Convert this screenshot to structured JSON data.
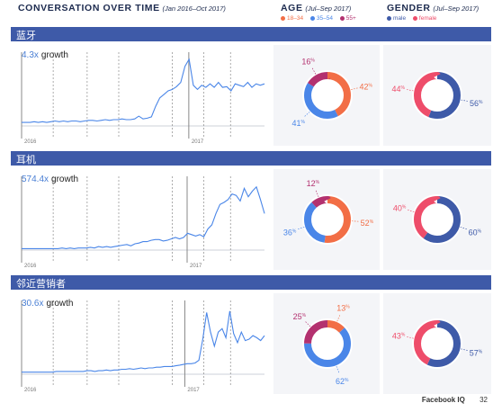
{
  "header": {
    "conversation_title": "CONVERSATION OVER TIME",
    "conversation_sub": "(Jan 2016–Oct 2017)",
    "age_title": "AGE",
    "age_sub": "(Jul–Sep 2017)",
    "gender_title": "GENDER",
    "gender_sub": "(Jul–Sep 2017)"
  },
  "legend": {
    "age": [
      {
        "label": "18–34",
        "color": "#f26e46"
      },
      {
        "label": "35–54",
        "color": "#4a86e8"
      },
      {
        "label": "55+",
        "color": "#b3316f"
      }
    ],
    "gender": [
      {
        "label": "male",
        "color": "#3e5aa8"
      },
      {
        "label": "female",
        "color": "#ee4d6a"
      }
    ]
  },
  "colors": {
    "band": "#3e5aa8",
    "line": "#4a86e8"
  },
  "footer": {
    "brand": "Facebook IQ",
    "page": "32"
  },
  "chart_data": [
    {
      "type": "line",
      "title": "蓝牙",
      "growth_value": "4.3x",
      "growth_word": "growth",
      "year_labels": [
        "2016",
        "2017"
      ],
      "ylim": [
        0,
        100
      ],
      "values": [
        5,
        5,
        5,
        6,
        5,
        6,
        5,
        6,
        7,
        6,
        7,
        6,
        7,
        7,
        6,
        7,
        8,
        8,
        7,
        8,
        9,
        8,
        9,
        9,
        10,
        9,
        9,
        10,
        14,
        10,
        11,
        13,
        28,
        40,
        45,
        50,
        52,
        56,
        62,
        85,
        95,
        58,
        52,
        58,
        55,
        60,
        55,
        62,
        55,
        56,
        50,
        60,
        58,
        56,
        62,
        55,
        60,
        58,
        60
      ],
      "donuts": [
        {
          "kind": "age",
          "values": [
            42,
            41,
            16
          ],
          "labels": [
            "42",
            "41",
            "16"
          ],
          "pct": "%"
        },
        {
          "kind": "gender",
          "values": [
            56,
            44
          ],
          "labels": [
            "56",
            "44"
          ],
          "pct": "%"
        }
      ]
    },
    {
      "type": "line",
      "title": "耳机",
      "growth_value": "574.4x",
      "growth_word": "growth",
      "year_labels": [
        "2016",
        "2017"
      ],
      "ylim": [
        0,
        100
      ],
      "values": [
        2,
        2,
        2,
        2,
        2,
        2,
        2,
        2,
        2,
        2,
        3,
        2,
        3,
        2,
        3,
        3,
        3,
        4,
        3,
        5,
        4,
        5,
        4,
        5,
        6,
        7,
        8,
        6,
        9,
        10,
        12,
        12,
        14,
        15,
        15,
        13,
        14,
        16,
        18,
        16,
        18,
        24,
        22,
        20,
        22,
        19,
        30,
        36,
        52,
        65,
        68,
        72,
        80,
        78,
        70,
        88,
        76,
        84,
        90,
        72,
        52
      ],
      "donuts": [
        {
          "kind": "age",
          "values": [
            52,
            36,
            12
          ],
          "labels": [
            "52",
            "36",
            "12"
          ],
          "pct": "%"
        },
        {
          "kind": "gender",
          "values": [
            60,
            40
          ],
          "labels": [
            "60",
            "40"
          ],
          "pct": "%"
        }
      ]
    },
    {
      "type": "line",
      "title": "邻近营销者",
      "growth_value": "30.6x",
      "growth_word": "growth",
      "year_labels": [
        "2016",
        "2017"
      ],
      "ylim": [
        0,
        100
      ],
      "values": [
        3,
        3,
        3,
        3,
        3,
        3,
        3,
        3,
        3,
        4,
        4,
        4,
        4,
        4,
        4,
        4,
        4,
        5,
        5,
        4,
        5,
        5,
        6,
        5,
        6,
        6,
        7,
        7,
        8,
        7,
        8,
        9,
        8,
        9,
        9,
        10,
        10,
        11,
        11,
        11,
        12,
        13,
        14,
        15,
        15,
        16,
        20,
        50,
        88,
        60,
        40,
        60,
        65,
        52,
        90,
        58,
        45,
        60,
        48,
        50,
        55,
        52,
        48,
        55
      ],
      "donuts": [
        {
          "kind": "age",
          "values": [
            13,
            62,
            25
          ],
          "labels": [
            "13",
            "62",
            "25"
          ],
          "pct": "%"
        },
        {
          "kind": "gender",
          "values": [
            57,
            43
          ],
          "labels": [
            "57",
            "43"
          ],
          "pct": "%"
        }
      ]
    }
  ]
}
